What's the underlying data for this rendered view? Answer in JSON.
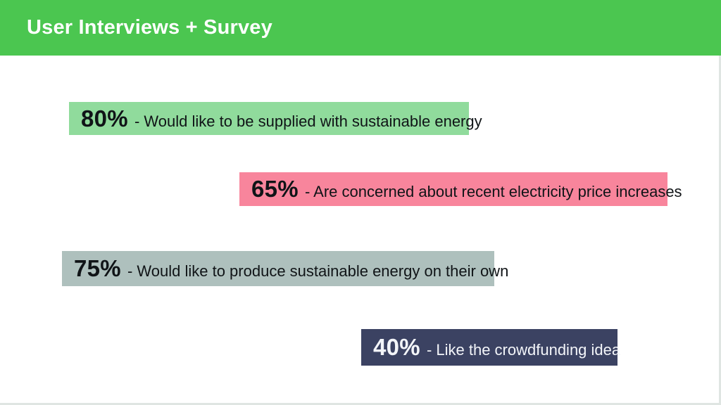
{
  "slide": {
    "title": "User Interviews + Survey",
    "header_bg_color": "#4bc650",
    "title_color": "#ffffff",
    "background_color": "#ffffff"
  },
  "stats": [
    {
      "percent": "80%",
      "label": "- Would like to be supplied with sustainable energy",
      "bg_color": "#90db9c",
      "text_color": "#101417"
    },
    {
      "percent": "65%",
      "label": "- Are concerned about recent electricity price increases",
      "bg_color": "#f8859c",
      "text_color": "#101417"
    },
    {
      "percent": "75%",
      "label": "- Would like to produce sustainable energy on their own",
      "bg_color": "#aec0bd",
      "text_color": "#101417"
    },
    {
      "percent": "40%",
      "label": "- Like the crowdfunding idea",
      "bg_color": "#3b4262",
      "text_color": "#f3f5f9"
    }
  ]
}
